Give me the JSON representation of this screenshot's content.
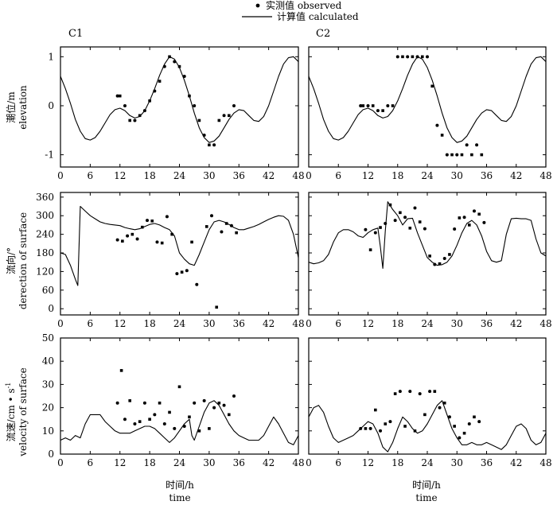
{
  "legend": {
    "observed": "实测值 observed",
    "calculated": "计算值 calculated"
  },
  "panel_titles": {
    "left": "C1",
    "right": "C2"
  },
  "xlabel": {
    "zh": "时间/h",
    "en": "time"
  },
  "ylabels": {
    "elevation": {
      "zh": "潮位/m",
      "en": "elevation"
    },
    "direction": {
      "zh": "流向/°",
      "en": "derection of surface"
    },
    "velocity": {
      "zh": "流速/cm • s",
      "sup": "-1",
      "en": "velocity of surface"
    }
  },
  "chart_data": [
    {
      "type": "line",
      "row": "elevation",
      "station": "C1",
      "xlim": [
        0,
        48
      ],
      "ylim": [
        -1.25,
        1.2
      ],
      "x_ticks": [
        0,
        6,
        12,
        18,
        24,
        30,
        36,
        42,
        48
      ],
      "y_ticks": [
        -1,
        0,
        1
      ],
      "calculated": {
        "x": [
          0,
          1,
          2,
          3,
          4,
          5,
          6,
          7,
          8,
          9,
          10,
          11,
          12,
          13,
          14,
          15,
          16,
          17,
          18,
          19,
          20,
          21,
          22,
          23,
          24,
          25,
          26,
          27,
          28,
          29,
          30,
          31,
          32,
          33,
          34,
          35,
          36,
          37,
          38,
          39,
          40,
          41,
          42,
          43,
          44,
          45,
          46,
          47,
          48
        ],
        "y": [
          0.6,
          0.35,
          0.05,
          -0.28,
          -0.52,
          -0.67,
          -0.7,
          -0.65,
          -0.52,
          -0.35,
          -0.18,
          -0.08,
          -0.05,
          -0.1,
          -0.2,
          -0.25,
          -0.22,
          -0.1,
          0.1,
          0.35,
          0.62,
          0.85,
          1.0,
          0.95,
          0.78,
          0.52,
          0.2,
          -0.15,
          -0.45,
          -0.65,
          -0.75,
          -0.72,
          -0.62,
          -0.45,
          -0.28,
          -0.15,
          -0.08,
          -0.1,
          -0.2,
          -0.3,
          -0.32,
          -0.22,
          0.0,
          0.3,
          0.6,
          0.85,
          0.98,
          1.0,
          0.9
        ]
      },
      "observed": [
        [
          11.5,
          0.2
        ],
        [
          12,
          0.2
        ],
        [
          13,
          0.0
        ],
        [
          14,
          -0.3
        ],
        [
          15,
          -0.3
        ],
        [
          16,
          -0.2
        ],
        [
          17,
          -0.1
        ],
        [
          18,
          0.1
        ],
        [
          19,
          0.3
        ],
        [
          20,
          0.5
        ],
        [
          21,
          0.8
        ],
        [
          22,
          1.0
        ],
        [
          23,
          0.9
        ],
        [
          24,
          0.8
        ],
        [
          25,
          0.6
        ],
        [
          26,
          0.2
        ],
        [
          27,
          0.0
        ],
        [
          28,
          -0.3
        ],
        [
          29,
          -0.6
        ],
        [
          30,
          -0.8
        ],
        [
          31,
          -0.8
        ],
        [
          32,
          -0.3
        ],
        [
          33,
          -0.2
        ],
        [
          34,
          -0.2
        ],
        [
          35,
          0.0
        ]
      ]
    },
    {
      "type": "line",
      "row": "elevation",
      "station": "C2",
      "xlim": [
        0,
        48
      ],
      "ylim": [
        -1.25,
        1.2
      ],
      "x_ticks": [
        0,
        6,
        12,
        18,
        24,
        30,
        36,
        42,
        48
      ],
      "y_ticks": [
        -1,
        0,
        1
      ],
      "calculated": {
        "x": [
          0,
          1,
          2,
          3,
          4,
          5,
          6,
          7,
          8,
          9,
          10,
          11,
          12,
          13,
          14,
          15,
          16,
          17,
          18,
          19,
          20,
          21,
          22,
          23,
          24,
          25,
          26,
          27,
          28,
          29,
          30,
          31,
          32,
          33,
          34,
          35,
          36,
          37,
          38,
          39,
          40,
          41,
          42,
          43,
          44,
          45,
          46,
          47,
          48
        ],
        "y": [
          0.6,
          0.35,
          0.05,
          -0.28,
          -0.52,
          -0.67,
          -0.7,
          -0.65,
          -0.52,
          -0.35,
          -0.18,
          -0.08,
          -0.05,
          -0.1,
          -0.2,
          -0.25,
          -0.22,
          -0.1,
          0.1,
          0.35,
          0.62,
          0.85,
          1.0,
          0.95,
          0.78,
          0.52,
          0.2,
          -0.15,
          -0.45,
          -0.65,
          -0.75,
          -0.72,
          -0.62,
          -0.45,
          -0.28,
          -0.15,
          -0.08,
          -0.1,
          -0.2,
          -0.3,
          -0.32,
          -0.22,
          0.0,
          0.3,
          0.6,
          0.85,
          0.98,
          1.0,
          0.9
        ]
      },
      "observed": [
        [
          10.5,
          0.0
        ],
        [
          11,
          0.0
        ],
        [
          12,
          0.0
        ],
        [
          13,
          0.0
        ],
        [
          14,
          -0.1
        ],
        [
          15,
          -0.1
        ],
        [
          16,
          0.0
        ],
        [
          17,
          0.0
        ],
        [
          18,
          1.0
        ],
        [
          19,
          1.0
        ],
        [
          20,
          1.0
        ],
        [
          21,
          1.0
        ],
        [
          22,
          1.0
        ],
        [
          23,
          1.0
        ],
        [
          24,
          1.0
        ],
        [
          25,
          0.4
        ],
        [
          26,
          -0.4
        ],
        [
          27,
          -0.6
        ],
        [
          28,
          -1.0
        ],
        [
          29,
          -1.0
        ],
        [
          30,
          -1.0
        ],
        [
          31,
          -1.0
        ],
        [
          32,
          -0.8
        ],
        [
          33,
          -1.0
        ],
        [
          34,
          -0.8
        ],
        [
          35,
          -1.0
        ]
      ]
    },
    {
      "type": "line",
      "row": "direction",
      "station": "C1",
      "xlim": [
        0,
        48
      ],
      "ylim": [
        -20,
        375
      ],
      "x_ticks": [
        0,
        6,
        12,
        18,
        24,
        30,
        36,
        42,
        48
      ],
      "y_ticks": [
        0,
        60,
        120,
        180,
        240,
        300,
        360
      ],
      "calculated": {
        "x": [
          0,
          1,
          2,
          3,
          3.5,
          4,
          5,
          6,
          7,
          8,
          9,
          10,
          11,
          12,
          13,
          14,
          15,
          16,
          17,
          18,
          19,
          20,
          21,
          22,
          23,
          24,
          25,
          26,
          27,
          28,
          29,
          30,
          31,
          32,
          33,
          34,
          35,
          36,
          37,
          38,
          39,
          40,
          41,
          42,
          43,
          44,
          45,
          46,
          47,
          48
        ],
        "y": [
          180,
          175,
          140,
          95,
          75,
          330,
          315,
          300,
          290,
          280,
          275,
          272,
          270,
          268,
          262,
          258,
          255,
          258,
          265,
          272,
          275,
          270,
          262,
          255,
          235,
          180,
          160,
          145,
          140,
          175,
          215,
          255,
          280,
          285,
          280,
          272,
          262,
          255,
          255,
          260,
          265,
          272,
          280,
          288,
          295,
          300,
          298,
          285,
          240,
          165
        ]
      },
      "observed": [
        [
          11.5,
          222
        ],
        [
          12.5,
          218
        ],
        [
          13.5,
          235
        ],
        [
          14.5,
          240
        ],
        [
          15.5,
          225
        ],
        [
          16.5,
          263
        ],
        [
          17.5,
          285
        ],
        [
          18.5,
          283
        ],
        [
          19.5,
          215
        ],
        [
          20.5,
          212
        ],
        [
          21.5,
          297
        ],
        [
          22.5,
          240
        ],
        [
          23.5,
          113
        ],
        [
          24.5,
          118
        ],
        [
          25.5,
          123
        ],
        [
          26.5,
          215
        ],
        [
          27.5,
          78
        ],
        [
          29.5,
          265
        ],
        [
          30.5,
          300
        ],
        [
          31.5,
          5
        ],
        [
          32.5,
          248
        ],
        [
          33.5,
          275
        ],
        [
          34.5,
          268
        ],
        [
          35.5,
          245
        ]
      ]
    },
    {
      "type": "line",
      "row": "direction",
      "station": "C2",
      "xlim": [
        0,
        48
      ],
      "ylim": [
        -20,
        375
      ],
      "x_ticks": [
        0,
        6,
        12,
        18,
        24,
        30,
        36,
        42,
        48
      ],
      "y_ticks": [
        0,
        60,
        120,
        180,
        240,
        300,
        360
      ],
      "calculated": {
        "x": [
          0,
          1,
          2,
          3,
          4,
          5,
          6,
          7,
          8,
          9,
          10,
          11,
          12,
          13,
          14,
          14.5,
          15,
          15.5,
          16,
          17,
          18,
          19,
          20,
          21,
          22,
          23,
          24,
          25,
          26,
          27,
          28,
          29,
          30,
          31,
          32,
          33,
          34,
          35,
          36,
          37,
          38,
          39,
          40,
          41,
          42,
          43,
          44,
          45,
          46,
          47,
          48
        ],
        "y": [
          150,
          145,
          148,
          155,
          175,
          215,
          245,
          255,
          255,
          248,
          235,
          230,
          245,
          255,
          260,
          200,
          130,
          250,
          345,
          320,
          300,
          270,
          290,
          292,
          245,
          205,
          165,
          150,
          140,
          142,
          150,
          170,
          205,
          245,
          275,
          285,
          270,
          235,
          185,
          155,
          150,
          155,
          240,
          290,
          292,
          290,
          290,
          285,
          225,
          180,
          170
        ]
      },
      "observed": [
        [
          11.5,
          255
        ],
        [
          12.5,
          190
        ],
        [
          13.5,
          245
        ],
        [
          14.5,
          262
        ],
        [
          15.5,
          275
        ],
        [
          16.5,
          335
        ],
        [
          17.5,
          285
        ],
        [
          18.5,
          310
        ],
        [
          19.5,
          295
        ],
        [
          20.5,
          260
        ],
        [
          21.5,
          325
        ],
        [
          22.5,
          280
        ],
        [
          23.5,
          258
        ],
        [
          24.5,
          170
        ],
        [
          25.5,
          143
        ],
        [
          26.5,
          145
        ],
        [
          27.5,
          162
        ],
        [
          28.5,
          175
        ],
        [
          29.5,
          257
        ],
        [
          30.5,
          293
        ],
        [
          31.5,
          295
        ],
        [
          32.5,
          270
        ],
        [
          33.5,
          315
        ],
        [
          34.5,
          305
        ],
        [
          35.5,
          278
        ]
      ]
    },
    {
      "type": "line",
      "row": "velocity",
      "station": "C1",
      "xlim": [
        0,
        48
      ],
      "ylim": [
        0,
        50
      ],
      "x_ticks": [
        0,
        6,
        12,
        18,
        24,
        30,
        36,
        42,
        48
      ],
      "y_ticks": [
        0,
        10,
        20,
        30,
        40,
        50
      ],
      "calculated": {
        "x": [
          0,
          1,
          2,
          3,
          4,
          5,
          6,
          7,
          8,
          9,
          10,
          11,
          12,
          13,
          14,
          15,
          16,
          17,
          18,
          19,
          20,
          21,
          22,
          23,
          24,
          25,
          26,
          26.5,
          27,
          28,
          29,
          30,
          31,
          32,
          33,
          34,
          35,
          36,
          37,
          38,
          39,
          40,
          41,
          42,
          43,
          44,
          45,
          46,
          47,
          48
        ],
        "y": [
          6,
          7,
          6,
          8,
          7,
          13,
          17,
          17,
          17,
          14,
          12,
          10,
          9,
          9,
          9,
          10,
          11,
          12,
          12,
          11,
          9,
          7,
          5,
          7,
          10,
          13,
          15,
          8,
          6,
          12,
          18,
          22,
          23,
          21,
          17,
          13,
          10,
          8,
          7,
          6,
          6,
          6,
          8,
          12,
          16,
          13,
          9,
          5,
          4,
          8
        ]
      },
      "observed": [
        [
          11.5,
          22
        ],
        [
          12.3,
          36
        ],
        [
          13,
          15
        ],
        [
          14,
          23
        ],
        [
          15,
          13
        ],
        [
          16,
          14
        ],
        [
          17,
          22
        ],
        [
          18,
          15
        ],
        [
          19,
          17
        ],
        [
          20,
          22
        ],
        [
          21,
          13
        ],
        [
          22,
          18
        ],
        [
          23,
          11
        ],
        [
          24,
          29
        ],
        [
          25,
          12
        ],
        [
          26,
          16
        ],
        [
          27,
          22
        ],
        [
          28,
          10
        ],
        [
          29,
          23
        ],
        [
          30,
          11
        ],
        [
          31,
          20
        ],
        [
          32,
          22
        ],
        [
          33,
          21
        ],
        [
          34,
          17
        ],
        [
          35,
          25
        ]
      ]
    },
    {
      "type": "line",
      "row": "velocity",
      "station": "C2",
      "xlim": [
        0,
        48
      ],
      "ylim": [
        0,
        50
      ],
      "x_ticks": [
        0,
        6,
        12,
        18,
        24,
        30,
        36,
        42,
        48
      ],
      "y_ticks": [
        0,
        10,
        20,
        30,
        40,
        50
      ],
      "calculated": {
        "x": [
          0,
          1,
          2,
          3,
          4,
          5,
          6,
          7,
          8,
          9,
          10,
          11,
          12,
          13,
          14,
          15,
          16,
          17,
          18,
          19,
          20,
          21,
          22,
          23,
          24,
          25,
          26,
          27,
          28,
          29,
          30,
          31,
          32,
          33,
          34,
          35,
          36,
          37,
          38,
          39,
          40,
          41,
          42,
          43,
          44,
          45,
          46,
          47,
          48
        ],
        "y": [
          16,
          20,
          21,
          18,
          12,
          7,
          5,
          6,
          7,
          8,
          10,
          12,
          14,
          13,
          9,
          3,
          1,
          5,
          11,
          16,
          14,
          11,
          9,
          10,
          13,
          17,
          21,
          23,
          17,
          11,
          7,
          4,
          4,
          5,
          4,
          4,
          5,
          4,
          3,
          2,
          4,
          8,
          12,
          13,
          11,
          6,
          4,
          5,
          9
        ]
      },
      "observed": [
        [
          10.5,
          11
        ],
        [
          11.5,
          11
        ],
        [
          12.5,
          11
        ],
        [
          13.5,
          19
        ],
        [
          14.5,
          10
        ],
        [
          15.5,
          13
        ],
        [
          16.5,
          14
        ],
        [
          17.5,
          26
        ],
        [
          18.5,
          27
        ],
        [
          19.5,
          12
        ],
        [
          20.5,
          27
        ],
        [
          21.5,
          10
        ],
        [
          22.5,
          26
        ],
        [
          23.5,
          17
        ],
        [
          24.5,
          27
        ],
        [
          25.5,
          27
        ],
        [
          26.5,
          20
        ],
        [
          27.5,
          22
        ],
        [
          28.5,
          16
        ],
        [
          29.5,
          12
        ],
        [
          30.5,
          7
        ],
        [
          31.5,
          9
        ],
        [
          32.5,
          13
        ],
        [
          33.5,
          16
        ],
        [
          34.5,
          14
        ]
      ]
    }
  ]
}
